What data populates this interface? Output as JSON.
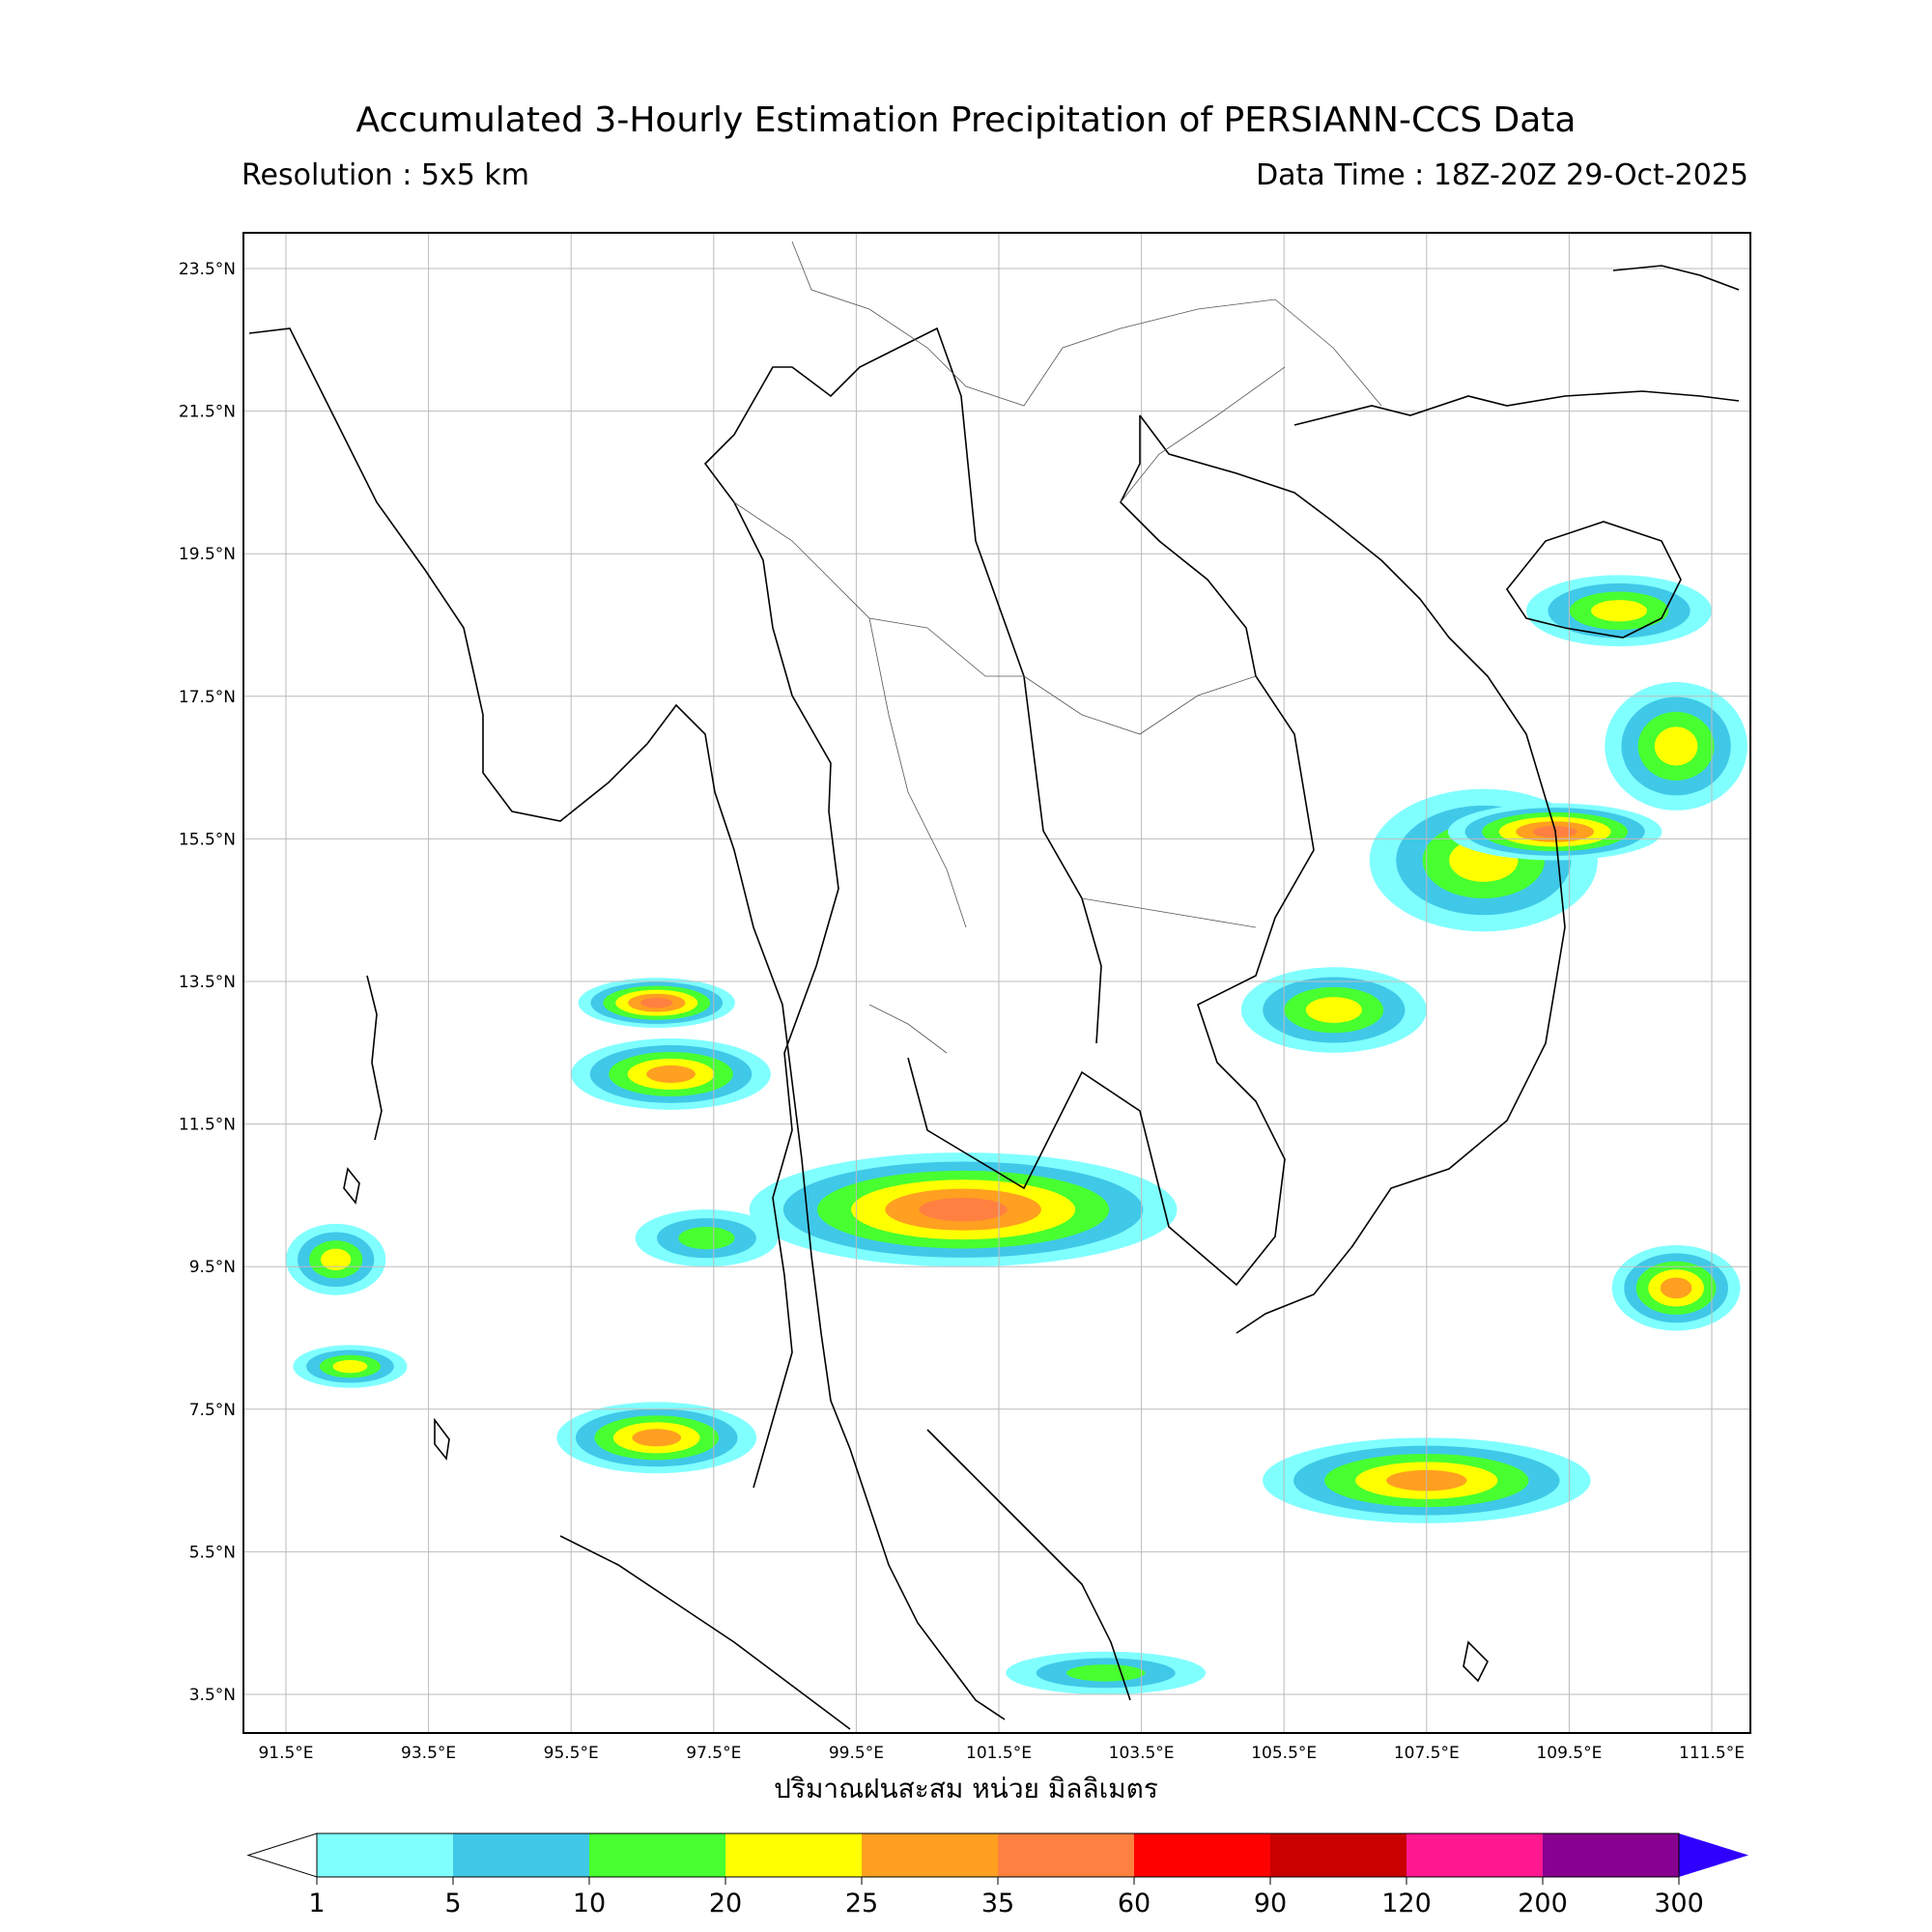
{
  "title": "Accumulated 3-Hourly Estimation Precipitation of PERSIANN-CCS Data",
  "resolution": "Resolution : 5x5 km",
  "data_time": "Data Time : 18Z-20Z 29-Oct-2025",
  "colorbar_label": "ปริมาณฝนสะสม หน่วย มิลลิเมตร",
  "lat_ticks": [
    "23.5°N",
    "21.5°N",
    "19.5°N",
    "17.5°N",
    "15.5°N",
    "13.5°N",
    "11.5°N",
    "9.5°N",
    "7.5°N",
    "5.5°N",
    "3.5°N"
  ],
  "lon_ticks": [
    "91.5°E",
    "93.5°E",
    "95.5°E",
    "97.5°E",
    "99.5°E",
    "101.5°E",
    "103.5°E",
    "105.5°E",
    "107.5°E",
    "109.5°E",
    "111.5°E"
  ],
  "colorbar": {
    "levels": [
      "1",
      "5",
      "10",
      "20",
      "25",
      "35",
      "60",
      "90",
      "120",
      "200",
      "300"
    ],
    "colors": [
      "#80ffff",
      "#40c8e8",
      "#48ff30",
      "#ffff00",
      "#ffa020",
      "#ff8040",
      "#ff0000",
      "#c80000",
      "#ff1890",
      "#880090"
    ],
    "over_color": "#3000ff",
    "under_color": "#ffffff"
  },
  "rain_areas": [
    {
      "lon": 96.7,
      "lat": 13.2,
      "rx": 1.1,
      "ry": 0.35,
      "level": 5
    },
    {
      "lon": 96.9,
      "lat": 12.2,
      "rx": 1.4,
      "ry": 0.5,
      "level": 4
    },
    {
      "lon": 101.0,
      "lat": 10.3,
      "rx": 3.0,
      "ry": 0.8,
      "level": 5
    },
    {
      "lon": 96.7,
      "lat": 7.1,
      "rx": 1.4,
      "ry": 0.5,
      "level": 4
    },
    {
      "lon": 108.3,
      "lat": 15.2,
      "rx": 1.6,
      "ry": 1.0,
      "level": 3
    },
    {
      "lon": 109.3,
      "lat": 15.6,
      "rx": 1.5,
      "ry": 0.4,
      "level": 5
    },
    {
      "lon": 106.2,
      "lat": 13.1,
      "rx": 1.3,
      "ry": 0.6,
      "level": 3
    },
    {
      "lon": 107.5,
      "lat": 6.5,
      "rx": 2.3,
      "ry": 0.6,
      "level": 4
    },
    {
      "lon": 111.0,
      "lat": 9.2,
      "rx": 0.9,
      "ry": 0.6,
      "level": 4
    },
    {
      "lon": 111.0,
      "lat": 16.8,
      "rx": 1.0,
      "ry": 0.9,
      "level": 3
    },
    {
      "lon": 92.2,
      "lat": 9.6,
      "rx": 0.7,
      "ry": 0.5,
      "level": 3
    },
    {
      "lon": 92.4,
      "lat": 8.1,
      "rx": 0.8,
      "ry": 0.3,
      "level": 3
    },
    {
      "lon": 103.0,
      "lat": 3.8,
      "rx": 1.4,
      "ry": 0.3,
      "level": 2
    },
    {
      "lon": 97.4,
      "lat": 9.9,
      "rx": 1.0,
      "ry": 0.4,
      "level": 2
    },
    {
      "lon": 110.2,
      "lat": 18.7,
      "rx": 1.3,
      "ry": 0.5,
      "level": 3
    }
  ]
}
